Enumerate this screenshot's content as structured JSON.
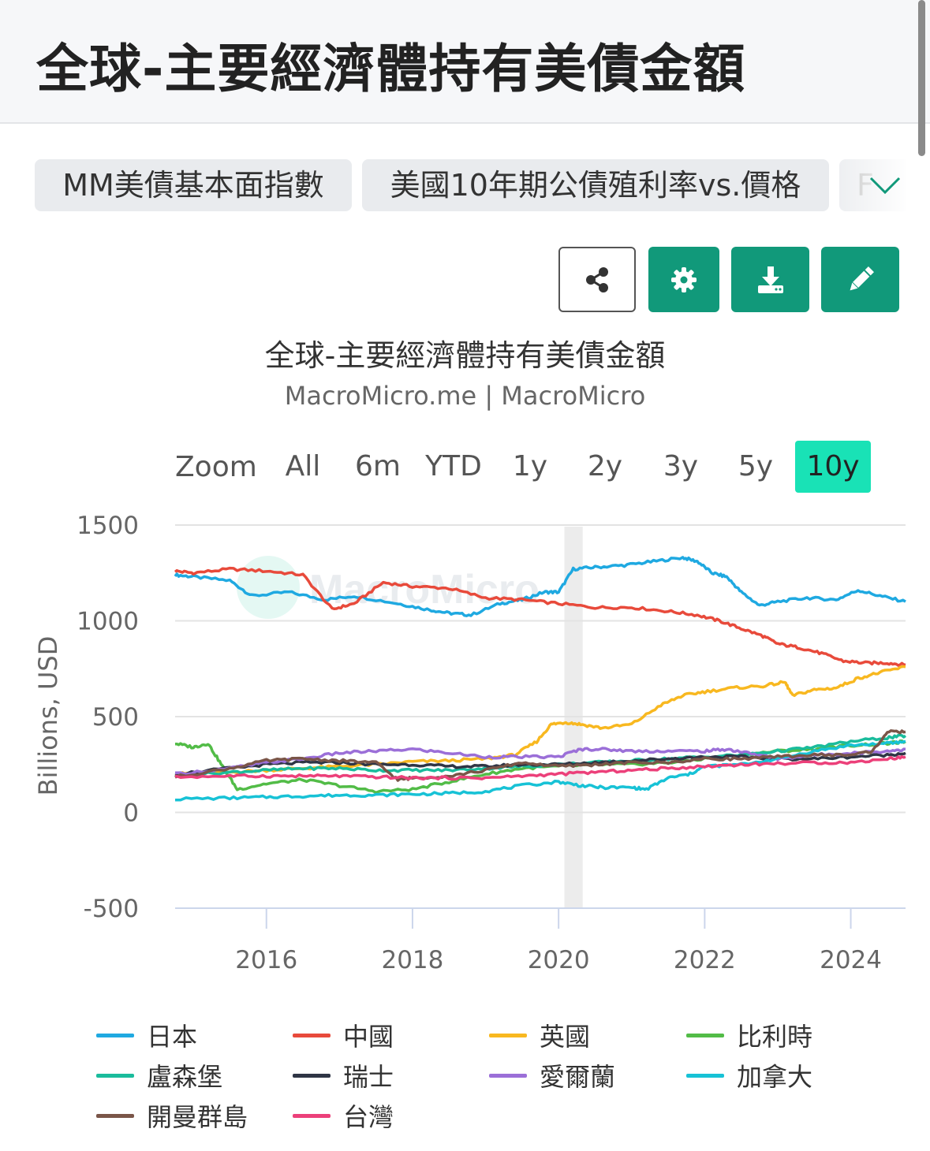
{
  "header": {
    "title": "全球-主要經濟體持有美債金額"
  },
  "tabs": [
    {
      "label": "MM美債基本面指數"
    },
    {
      "label": "美國10年期公債殖利率vs.價格"
    },
    {
      "label": "F"
    }
  ],
  "toolbar": {
    "share_icon": "share-icon",
    "settings_icon": "gear-icon",
    "download_icon": "download-icon",
    "edit_icon": "pencil-icon",
    "accent_color": "#11997a"
  },
  "chart_header": {
    "title": "全球-主要經濟體持有美債金額",
    "subtitle": "MacroMicro.me | MacroMicro"
  },
  "range_selector": {
    "zoom_label": "Zoom",
    "buttons": [
      "All",
      "6m",
      "YTD",
      "1y",
      "2y",
      "3y",
      "5y",
      "10y"
    ],
    "active": "10y",
    "active_color": "#19e2b6"
  },
  "watermark": "MacroMicro",
  "chart_data": {
    "type": "line",
    "ylabel": "Billions, USD",
    "ylim": [
      -500,
      1500
    ],
    "yticks": [
      1500,
      1000,
      500,
      0,
      -500
    ],
    "xlim": [
      2014.75,
      2024.75
    ],
    "xticks": [
      2016,
      2018,
      2020,
      2022,
      2024
    ],
    "grid": true,
    "legend_position": "bottom",
    "recession_band": [
      2020.08,
      2020.33
    ],
    "series": [
      {
        "name": "日本",
        "color": "#1fa9e1",
        "x": [
          2014.75,
          2015.0,
          2015.5,
          2015.8,
          2016.3,
          2016.8,
          2017.2,
          2017.8,
          2018.2,
          2018.5,
          2018.8,
          2019.2,
          2019.5,
          2019.8,
          2020.0,
          2020.2,
          2020.5,
          2020.9,
          2021.3,
          2021.7,
          2021.9,
          2022.1,
          2022.3,
          2022.5,
          2022.75,
          2023.0,
          2023.4,
          2023.8,
          2024.1,
          2024.4,
          2024.75
        ],
        "y": [
          1240,
          1230,
          1210,
          1130,
          1150,
          1110,
          1130,
          1090,
          1060,
          1040,
          1030,
          1090,
          1110,
          1150,
          1150,
          1270,
          1280,
          1290,
          1310,
          1330,
          1310,
          1250,
          1230,
          1150,
          1080,
          1100,
          1120,
          1110,
          1160,
          1130,
          1100
        ]
      },
      {
        "name": "中國",
        "color": "#e84a3b",
        "x": [
          2014.75,
          2015.0,
          2015.5,
          2016.0,
          2016.5,
          2016.9,
          2017.2,
          2017.6,
          2018.0,
          2018.5,
          2019.0,
          2019.5,
          2020.0,
          2020.5,
          2021.0,
          2021.5,
          2021.9,
          2022.2,
          2022.5,
          2022.8,
          2023.0,
          2023.3,
          2023.6,
          2023.9,
          2024.2,
          2024.5,
          2024.75
        ],
        "y": [
          1260,
          1250,
          1270,
          1260,
          1240,
          1060,
          1090,
          1200,
          1180,
          1170,
          1120,
          1110,
          1090,
          1070,
          1070,
          1050,
          1030,
          1000,
          960,
          920,
          880,
          860,
          830,
          790,
          780,
          780,
          770
        ]
      },
      {
        "name": "英國",
        "color": "#f8b820",
        "x": [
          2014.75,
          2015.0,
          2015.5,
          2016.0,
          2016.5,
          2017.0,
          2017.5,
          2018.0,
          2018.5,
          2019.0,
          2019.4,
          2019.7,
          2019.9,
          2020.1,
          2020.3,
          2020.6,
          2021.0,
          2021.4,
          2021.7,
          2022.0,
          2022.4,
          2022.8,
          2023.1,
          2023.2,
          2023.5,
          2023.8,
          2024.1,
          2024.4,
          2024.75
        ],
        "y": [
          200,
          205,
          210,
          220,
          230,
          240,
          250,
          265,
          270,
          280,
          300,
          370,
          460,
          470,
          460,
          440,
          460,
          560,
          610,
          630,
          650,
          660,
          680,
          610,
          640,
          650,
          700,
          730,
          760
        ]
      },
      {
        "name": "比利時",
        "color": "#52bc47",
        "x": [
          2014.75,
          2015.0,
          2015.2,
          2015.4,
          2015.6,
          2016.0,
          2016.5,
          2017.0,
          2017.5,
          2018.0,
          2018.5,
          2019.0,
          2019.5,
          2020.0,
          2020.5,
          2021.0,
          2021.5,
          2022.0,
          2022.5,
          2023.0,
          2023.5,
          2024.0,
          2024.5,
          2024.75
        ],
        "y": [
          360,
          340,
          360,
          240,
          120,
          150,
          170,
          140,
          110,
          120,
          160,
          200,
          230,
          240,
          250,
          250,
          260,
          280,
          300,
          320,
          330,
          350,
          360,
          370
        ]
      },
      {
        "name": "盧森堡",
        "color": "#1abc9c",
        "x": [
          2014.75,
          2015.5,
          2016.0,
          2016.5,
          2017.0,
          2017.5,
          2018.0,
          2018.5,
          2019.0,
          2019.5,
          2020.0,
          2020.5,
          2021.0,
          2021.5,
          2022.0,
          2022.5,
          2023.0,
          2023.5,
          2024.0,
          2024.5,
          2024.75
        ],
        "y": [
          190,
          210,
          220,
          230,
          230,
          220,
          220,
          220,
          230,
          240,
          250,
          260,
          270,
          280,
          290,
          300,
          320,
          340,
          370,
          390,
          400
        ]
      },
      {
        "name": "瑞士",
        "color": "#2f3545",
        "x": [
          2014.75,
          2015.5,
          2016.0,
          2016.5,
          2017.0,
          2017.5,
          2018.0,
          2018.5,
          2019.0,
          2019.5,
          2020.0,
          2020.5,
          2021.0,
          2021.5,
          2022.0,
          2022.5,
          2023.0,
          2023.5,
          2024.0,
          2024.5,
          2024.75
        ],
        "y": [
          200,
          230,
          250,
          260,
          260,
          250,
          250,
          240,
          240,
          250,
          250,
          260,
          270,
          280,
          290,
          290,
          280,
          280,
          290,
          300,
          310
        ]
      },
      {
        "name": "愛爾蘭",
        "color": "#9b6fd8",
        "x": [
          2014.75,
          2015.5,
          2016.0,
          2016.5,
          2017.0,
          2017.5,
          2018.0,
          2018.5,
          2019.0,
          2019.5,
          2020.0,
          2020.3,
          2020.6,
          2021.0,
          2021.5,
          2022.0,
          2022.3,
          2022.6,
          2023.0,
          2023.5,
          2024.0,
          2024.5,
          2024.75
        ],
        "y": [
          200,
          230,
          260,
          280,
          310,
          320,
          330,
          310,
          290,
          290,
          290,
          330,
          330,
          320,
          320,
          320,
          330,
          310,
          280,
          300,
          310,
          320,
          330
        ]
      },
      {
        "name": "加拿大",
        "color": "#17c2d6",
        "x": [
          2014.75,
          2015.5,
          2016.0,
          2016.5,
          2017.0,
          2017.5,
          2018.0,
          2018.5,
          2019.0,
          2019.5,
          2020.0,
          2020.3,
          2020.6,
          2021.0,
          2021.2,
          2021.5,
          2021.8,
          2022.0,
          2022.5,
          2023.0,
          2023.5,
          2024.0,
          2024.5,
          2024.75
        ],
        "y": [
          70,
          75,
          80,
          85,
          90,
          90,
          95,
          100,
          110,
          140,
          160,
          140,
          130,
          130,
          120,
          180,
          200,
          240,
          250,
          280,
          320,
          350,
          360,
          370
        ]
      },
      {
        "name": "開曼群島",
        "color": "#7a5548",
        "x": [
          2014.75,
          2015.5,
          2016.0,
          2016.5,
          2017.0,
          2017.5,
          2017.8,
          2018.0,
          2018.5,
          2019.0,
          2019.5,
          2020.0,
          2020.5,
          2021.0,
          2021.5,
          2022.0,
          2022.5,
          2023.0,
          2023.5,
          2024.0,
          2024.3,
          2024.5,
          2024.75
        ],
        "y": [
          185,
          230,
          270,
          280,
          270,
          260,
          170,
          180,
          190,
          220,
          260,
          240,
          250,
          260,
          260,
          280,
          280,
          290,
          300,
          300,
          320,
          420,
          420
        ]
      },
      {
        "name": "台灣",
        "color": "#ec407a",
        "x": [
          2014.75,
          2015.5,
          2016.0,
          2016.5,
          2017.0,
          2017.5,
          2018.0,
          2018.5,
          2019.0,
          2019.5,
          2020.0,
          2020.5,
          2021.0,
          2021.5,
          2022.0,
          2022.5,
          2023.0,
          2023.5,
          2024.0,
          2024.5,
          2024.75
        ],
        "y": [
          185,
          190,
          190,
          190,
          190,
          185,
          180,
          180,
          180,
          190,
          200,
          210,
          220,
          230,
          240,
          250,
          255,
          260,
          260,
          280,
          290
        ]
      }
    ]
  }
}
